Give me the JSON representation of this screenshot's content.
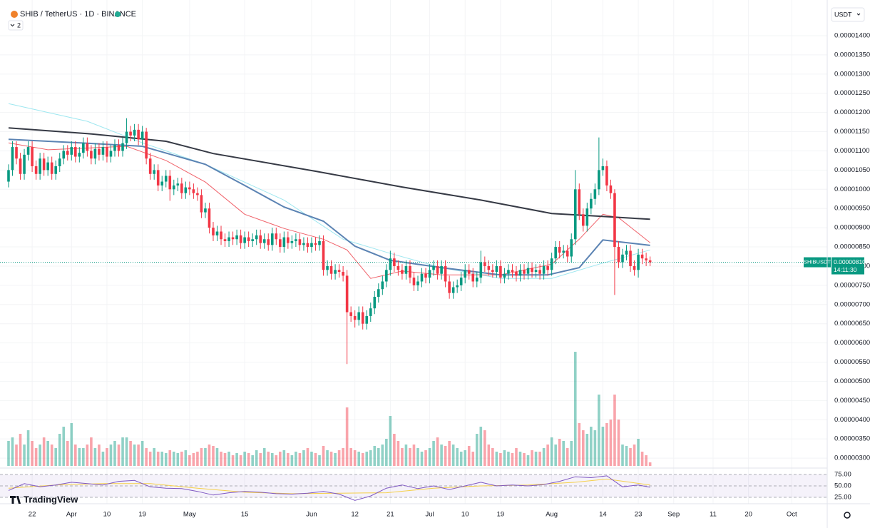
{
  "header": {
    "symbol": "SHIB / TetherUS · 1D · BINANCE",
    "indicator_count": "2",
    "currency": "USDT",
    "brand": "TradingView"
  },
  "chart_data": {
    "type": "candlestick",
    "up_color": "#089981",
    "down_color": "#f23645",
    "xlim": [
      -2.17,
      208
    ],
    "xticks": [
      {
        "value": 6,
        "label": "22"
      },
      {
        "value": 16,
        "label": "Apr"
      },
      {
        "value": 25,
        "label": "10"
      },
      {
        "value": 34,
        "label": "19"
      },
      {
        "value": 46,
        "label": "May"
      },
      {
        "value": 60,
        "label": "15"
      },
      {
        "value": 77,
        "label": "Jun"
      },
      {
        "value": 88,
        "label": "12"
      },
      {
        "value": 97,
        "label": "21"
      },
      {
        "value": 107,
        "label": "Jul"
      },
      {
        "value": 116,
        "label": "10"
      },
      {
        "value": 125,
        "label": "19"
      },
      {
        "value": 138,
        "label": "Aug"
      },
      {
        "value": 151,
        "label": "14"
      },
      {
        "value": 160,
        "label": "23"
      },
      {
        "value": 169,
        "label": "Sep"
      },
      {
        "value": 179,
        "label": "11"
      },
      {
        "value": 188,
        "label": "20"
      },
      {
        "value": 199,
        "label": "Oct"
      }
    ],
    "ylim": [
      2.76e-06,
      1.465e-05
    ],
    "yticks": [
      {
        "value": 3e-06,
        "label": "0.00000300"
      },
      {
        "value": 3.5e-06,
        "label": "0.00000350"
      },
      {
        "value": 4e-06,
        "label": "0.00000400"
      },
      {
        "value": 4.5e-06,
        "label": "0.00000450"
      },
      {
        "value": 5e-06,
        "label": "0.00000500"
      },
      {
        "value": 5.5e-06,
        "label": "0.00000550"
      },
      {
        "value": 6e-06,
        "label": "0.00000600"
      },
      {
        "value": 6.5e-06,
        "label": "0.00000650"
      },
      {
        "value": 7e-06,
        "label": "0.00000700"
      },
      {
        "value": 7.5e-06,
        "label": "0.00000750"
      },
      {
        "value": 8e-06,
        "label": "0.00000800"
      },
      {
        "value": 8.5e-06,
        "label": "0.00000850"
      },
      {
        "value": 9e-06,
        "label": "0.00000900"
      },
      {
        "value": 9.5e-06,
        "label": "0.00000950"
      },
      {
        "value": 1e-05,
        "label": "0.00001000"
      },
      {
        "value": 1.05e-05,
        "label": "0.00001050"
      },
      {
        "value": 1.1e-05,
        "label": "0.00001100"
      },
      {
        "value": 1.15e-05,
        "label": "0.00001150"
      },
      {
        "value": 1.2e-05,
        "label": "0.00001200"
      },
      {
        "value": 1.25e-05,
        "label": "0.00001250"
      },
      {
        "value": 1.3e-05,
        "label": "0.00001300"
      },
      {
        "value": 1.35e-05,
        "label": "0.00001350"
      },
      {
        "value": 1.4e-05,
        "label": "0.00001400"
      }
    ],
    "grid": true,
    "open": [
      1.02e-05,
      1.05e-05,
      1.11e-05,
      1.08e-05,
      1.04e-05,
      1.09e-05,
      1.11e-05,
      1.06e-05,
      1.04e-05,
      1.08e-05,
      1.05e-05,
      1.07e-05,
      1.04e-05,
      1.06e-05,
      1.08e-05,
      1.1e-05,
      1.09e-05,
      1.11e-05,
      1.085e-05,
      1.095e-05,
      1.12e-05,
      1.1e-05,
      1.08e-05,
      1.105e-05,
      1.09e-05,
      1.11e-05,
      1.085e-05,
      1.1e-05,
      1.115e-05,
      1.1e-05,
      1.12e-05,
      1.15e-05,
      1.14e-05,
      1.155e-05,
      1.13e-05,
      1.15e-05,
      1.08e-05,
      1.04e-05,
      1.05e-05,
      1.01e-05,
      1.02e-05,
      1.035e-05,
      1e-05,
      1.01e-05,
      1.015e-05,
      9.9e-06,
      1.005e-05,
      1e-05,
      9.9e-06,
      9.85e-06,
      9.4e-06,
      9.5e-06,
      9e-06,
      8.8e-06,
      8.9e-06,
      8.7e-06,
      8.65e-06,
      8.75e-06,
      8.7e-06,
      8.8e-06,
      8.6e-06,
      8.75e-06,
      8.65e-06,
      8.7e-06,
      8.8e-06,
      8.6e-06,
      8.7e-06,
      8.55e-06,
      8.85e-06,
      8.7e-06,
      8.5e-06,
      8.75e-06,
      8.6e-06,
      8.65e-06,
      8.7e-06,
      8.55e-06,
      8.6e-06,
      8.5e-06,
      8.6e-06,
      8.55e-06,
      8.65e-06,
      7.9e-06,
      8e-06,
      7.8e-06,
      7.9e-06,
      7.85e-06,
      7.75e-06,
      6.8e-06,
      6.7e-06,
      6.6e-06,
      6.8e-06,
      6.5e-06,
      6.7e-06,
      6.9e-06,
      7.2e-06,
      7.4e-06,
      7.6e-06,
      7.9e-06,
      8.2e-06,
      8e-06,
      7.9e-06,
      7.8e-06,
      8e-06,
      7.7e-06,
      7.5e-06,
      7.6e-06,
      7.8e-06,
      7.7e-06,
      7.9e-06,
      8e-06,
      7.8e-06,
      8e-06,
      7.6e-06,
      7.3e-06,
      7.45e-06,
      7.5e-06,
      7.7e-06,
      7.9e-06,
      7.8e-06,
      7.6e-06,
      7.7e-06,
      8.1e-06,
      8e-06,
      7.9e-06,
      7.85e-06,
      8e-06,
      7.7e-06,
      7.8e-06,
      7.9e-06,
      7.85e-06,
      7.75e-06,
      7.9e-06,
      7.8e-06,
      7.95e-06,
      7.85e-06,
      7.9e-06,
      7.8e-06,
      8e-06,
      7.9e-06,
      8.2e-06,
      8.5e-06,
      8.35e-06,
      8.4e-06,
      8.25e-06,
      8.7e-06,
      1e-05,
      9.35e-06,
      9.05e-06,
      9.5e-06,
      9.75e-06,
      1e-05,
      1.05e-05,
      1.06e-05,
      1.01e-05,
      9.9e-06,
      8.5e-06,
      8.1e-06,
      8.3e-06,
      8.4e-06,
      8e-06,
      7.9e-06,
      8.3e-06,
      8.2e-06,
      8.15e-06
    ],
    "high": [
      1.065e-05,
      1.125e-05,
      1.125e-05,
      1.095e-05,
      1.105e-05,
      1.125e-05,
      1.125e-05,
      1.075e-05,
      1.095e-05,
      1.095e-05,
      1.085e-05,
      1.085e-05,
      1.075e-05,
      1.095e-05,
      1.115e-05,
      1.115e-05,
      1.125e-05,
      1.125e-05,
      1.11e-05,
      1.135e-05,
      1.135e-05,
      1.115e-05,
      1.12e-05,
      1.12e-05,
      1.125e-05,
      1.125e-05,
      1.115e-05,
      1.13e-05,
      1.13e-05,
      1.135e-05,
      1.185e-05,
      1.165e-05,
      1.17e-05,
      1.17e-05,
      1.165e-05,
      1.16e-05,
      1.095e-05,
      1.065e-05,
      1.065e-05,
      1.035e-05,
      1.05e-05,
      1.05e-05,
      1.025e-05,
      1.03e-05,
      1.03e-05,
      1.02e-05,
      1.02e-05,
      1.015e-05,
      1.005e-05,
      1e-05,
      9.65e-06,
      9.65e-06,
      9.15e-06,
      9.05e-06,
      9.05e-06,
      8.85e-06,
      8.9e-06,
      8.9e-06,
      8.95e-06,
      8.95e-06,
      8.9e-06,
      8.9e-06,
      8.85e-06,
      8.95e-06,
      8.95e-06,
      8.85e-06,
      8.85e-06,
      9e-06,
      9e-06,
      8.85e-06,
      8.9e-06,
      8.9e-06,
      8.8e-06,
      8.85e-06,
      8.85e-06,
      8.75e-06,
      8.75e-06,
      8.75e-06,
      8.75e-06,
      8.8e-06,
      8.8e-06,
      8.15e-06,
      8.15e-06,
      8.05e-06,
      8.05e-06,
      8e-06,
      7.9e-06,
      6.95e-06,
      6.85e-06,
      6.95e-06,
      6.95e-06,
      6.85e-06,
      7.05e-06,
      7.35e-06,
      7.55e-06,
      7.75e-06,
      8.05e-06,
      8.4e-06,
      8.35e-06,
      8.15e-06,
      8.05e-06,
      8.15e-06,
      8.15e-06,
      7.85e-06,
      7.75e-06,
      7.95e-06,
      7.95e-06,
      8.05e-06,
      8.15e-06,
      8.15e-06,
      8.15e-06,
      8.15e-06,
      7.75e-06,
      7.6e-06,
      7.65e-06,
      7.85e-06,
      8.05e-06,
      8.05e-06,
      7.95e-06,
      7.85e-06,
      8.4e-06,
      8.25e-06,
      8.15e-06,
      8.05e-06,
      8.15e-06,
      8.15e-06,
      7.95e-06,
      8.05e-06,
      8.05e-06,
      8e-06,
      8.05e-06,
      8.05e-06,
      8.1e-06,
      8.1e-06,
      8.05e-06,
      8.05e-06,
      8.15e-06,
      8.15e-06,
      8.35e-06,
      8.65e-06,
      8.65e-06,
      8.55e-06,
      8.55e-06,
      8.85e-06,
      1.05e-05,
      1.015e-05,
      9.5e-06,
      9.65e-06,
      9.9e-06,
      1.015e-05,
      1.135e-05,
      1.08e-05,
      1.075e-05,
      1.025e-05,
      1e-05,
      8.65e-06,
      8.45e-06,
      8.55e-06,
      8.55e-06,
      8.15e-06,
      8.45e-06,
      8.45e-06,
      8.35e-06,
      8.25e-06
    ],
    "low": [
      1.005e-05,
      1.035e-05,
      1.065e-05,
      1.025e-05,
      1.025e-05,
      1.075e-05,
      1.045e-05,
      1.025e-05,
      1.025e-05,
      1.035e-05,
      1.035e-05,
      1.025e-05,
      1.025e-05,
      1.045e-05,
      1.065e-05,
      1.075e-05,
      1.075e-05,
      1.07e-05,
      1.07e-05,
      1.08e-05,
      1.085e-05,
      1.065e-05,
      1.065e-05,
      1.075e-05,
      1.075e-05,
      1.07e-05,
      1.07e-05,
      1.085e-05,
      1.085e-05,
      1.085e-05,
      1.105e-05,
      1.125e-05,
      1.125e-05,
      1.115e-05,
      1.115e-05,
      1.065e-05,
      1.025e-05,
      1.025e-05,
      9.95e-06,
      9.95e-06,
      1.005e-05,
      9.7e-06,
      9.85e-06,
      9.95e-06,
      9.75e-06,
      9.75e-06,
      9.85e-06,
      9.75e-06,
      9.7e-06,
      9.25e-06,
      9.25e-06,
      8.85e-06,
      8.65e-06,
      8.65e-06,
      8.55e-06,
      8.5e-06,
      8.5e-06,
      8.55e-06,
      8.55e-06,
      8.45e-06,
      8.45e-06,
      8.5e-06,
      8.5e-06,
      8.55e-06,
      8.45e-06,
      8.45e-06,
      8.4e-06,
      8.4e-06,
      8.55e-06,
      8.35e-06,
      8.35e-06,
      8.45e-06,
      8.45e-06,
      8.5e-06,
      8.4e-06,
      8.4e-06,
      8.35e-06,
      8.35e-06,
      8.4e-06,
      8.4e-06,
      7.75e-06,
      7.75e-06,
      7.65e-06,
      7.65e-06,
      7.7e-06,
      7.6e-06,
      5.45e-06,
      6.55e-06,
      6.4e-06,
      6.45e-06,
      6.35e-06,
      6.35e-06,
      6.55e-06,
      6.75e-06,
      7.05e-06,
      7.25e-06,
      7.45e-06,
      7.75e-06,
      7.85e-06,
      7.75e-06,
      7.65e-06,
      7.65e-06,
      7.55e-06,
      7.35e-06,
      7.35e-06,
      7.45e-06,
      7.55e-06,
      7.55e-06,
      7.75e-06,
      7.65e-06,
      7.65e-06,
      7.45e-06,
      7.15e-06,
      7.15e-06,
      7.3e-06,
      7.35e-06,
      7.55e-06,
      7.65e-06,
      7.45e-06,
      7.45e-06,
      7.55e-06,
      7.85e-06,
      7.75e-06,
      7.7e-06,
      7.7e-06,
      7.55e-06,
      7.55e-06,
      7.65e-06,
      7.7e-06,
      7.6e-06,
      7.6e-06,
      7.65e-06,
      7.65e-06,
      7.7e-06,
      7.7e-06,
      7.65e-06,
      7.65e-06,
      7.75e-06,
      7.75e-06,
      8.05e-06,
      8.2e-06,
      8.2e-06,
      8.1e-06,
      8.1e-06,
      8.55e-06,
      9.2e-06,
      8.9e-06,
      8.9e-06,
      9.35e-06,
      9.6e-06,
      9.85e-06,
      1.035e-05,
      9.95e-06,
      9.75e-06,
      7.25e-06,
      7.95e-06,
      7.95e-06,
      8.15e-06,
      7.85e-06,
      7.75e-06,
      7.7e-06,
      8.05e-06,
      8e-06,
      8e-06
    ],
    "close": [
      1.05e-05,
      1.11e-05,
      1.08e-05,
      1.04e-05,
      1.09e-05,
      1.11e-05,
      1.06e-05,
      1.04e-05,
      1.08e-05,
      1.05e-05,
      1.07e-05,
      1.04e-05,
      1.06e-05,
      1.08e-05,
      1.1e-05,
      1.09e-05,
      1.11e-05,
      1.085e-05,
      1.095e-05,
      1.12e-05,
      1.1e-05,
      1.08e-05,
      1.105e-05,
      1.09e-05,
      1.11e-05,
      1.085e-05,
      1.1e-05,
      1.115e-05,
      1.1e-05,
      1.12e-05,
      1.15e-05,
      1.14e-05,
      1.155e-05,
      1.13e-05,
      1.15e-05,
      1.08e-05,
      1.04e-05,
      1.05e-05,
      1.01e-05,
      1.02e-05,
      1.035e-05,
      1e-05,
      1.01e-05,
      1.015e-05,
      9.9e-06,
      1.005e-05,
      1e-05,
      9.9e-06,
      9.85e-06,
      9.4e-06,
      9.5e-06,
      9e-06,
      8.8e-06,
      8.9e-06,
      8.7e-06,
      8.65e-06,
      8.75e-06,
      8.7e-06,
      8.8e-06,
      8.6e-06,
      8.75e-06,
      8.65e-06,
      8.7e-06,
      8.8e-06,
      8.6e-06,
      8.7e-06,
      8.55e-06,
      8.85e-06,
      8.7e-06,
      8.5e-06,
      8.75e-06,
      8.6e-06,
      8.65e-06,
      8.7e-06,
      8.55e-06,
      8.6e-06,
      8.5e-06,
      8.6e-06,
      8.55e-06,
      8.65e-06,
      7.9e-06,
      8e-06,
      7.8e-06,
      7.9e-06,
      7.85e-06,
      7.75e-06,
      6.8e-06,
      6.7e-06,
      6.6e-06,
      6.8e-06,
      6.5e-06,
      6.7e-06,
      6.9e-06,
      7.2e-06,
      7.4e-06,
      7.6e-06,
      7.9e-06,
      8.2e-06,
      8e-06,
      7.9e-06,
      7.8e-06,
      8e-06,
      7.7e-06,
      7.5e-06,
      7.6e-06,
      7.8e-06,
      7.7e-06,
      7.9e-06,
      8e-06,
      7.8e-06,
      8e-06,
      7.6e-06,
      7.3e-06,
      7.45e-06,
      7.5e-06,
      7.7e-06,
      7.9e-06,
      7.8e-06,
      7.6e-06,
      7.7e-06,
      8.1e-06,
      8e-06,
      7.9e-06,
      7.85e-06,
      8e-06,
      7.7e-06,
      7.8e-06,
      7.9e-06,
      7.85e-06,
      7.75e-06,
      7.9e-06,
      7.8e-06,
      7.95e-06,
      7.85e-06,
      7.9e-06,
      7.8e-06,
      8e-06,
      7.9e-06,
      8.2e-06,
      8.5e-06,
      8.35e-06,
      8.4e-06,
      8.25e-06,
      8.7e-06,
      1e-05,
      9.35e-06,
      9.05e-06,
      9.5e-06,
      9.75e-06,
      1e-05,
      1.05e-05,
      1.06e-05,
      1.01e-05,
      9.9e-06,
      8.5e-06,
      8.1e-06,
      8.3e-06,
      8.4e-06,
      8e-06,
      7.9e-06,
      8.3e-06,
      8.2e-06,
      8.15e-06,
      8.1e-06
    ],
    "volume_ylim": [
      0,
      160
    ],
    "volume": [
      35,
      40,
      30,
      45,
      30,
      50,
      35,
      25,
      30,
      40,
      35,
      30,
      25,
      45,
      55,
      35,
      60,
      30,
      25,
      25,
      30,
      40,
      25,
      30,
      20,
      25,
      30,
      35,
      30,
      40,
      40,
      35,
      30,
      30,
      35,
      25,
      20,
      25,
      20,
      20,
      18,
      22,
      20,
      18,
      20,
      22,
      15,
      18,
      20,
      25,
      25,
      30,
      28,
      25,
      20,
      18,
      20,
      15,
      18,
      15,
      20,
      18,
      15,
      22,
      18,
      25,
      20,
      18,
      15,
      20,
      22,
      18,
      15,
      20,
      18,
      22,
      25,
      20,
      18,
      15,
      28,
      22,
      20,
      18,
      22,
      25,
      82,
      25,
      22,
      20,
      18,
      20,
      22,
      28,
      25,
      30,
      38,
      70,
      45,
      35,
      25,
      30,
      25,
      30,
      25,
      20,
      22,
      25,
      35,
      40,
      30,
      28,
      35,
      30,
      25,
      20,
      22,
      28,
      20,
      45,
      55,
      50,
      30,
      25,
      20,
      18,
      22,
      20,
      18,
      25,
      20,
      18,
      15,
      22,
      20,
      20,
      25,
      30,
      40,
      30,
      38,
      35,
      25,
      35,
      160,
      60,
      50,
      45,
      55,
      50,
      100,
      55,
      60,
      65,
      100,
      65,
      30,
      28,
      25,
      30,
      38,
      20,
      15,
      5
    ],
    "overlays": [
      {
        "color": "#9ee7f0",
        "x": [
          0,
          20,
          34,
          50,
          70,
          85,
          97,
          110,
          125,
          138,
          150,
          163
        ],
        "values": [
          1.223e-05,
          1.177e-05,
          1.121e-05,
          1.065e-05,
          9.72e-06,
          8.7e-06,
          8.33e-06,
          7.96e-06,
          7.68e-06,
          7.68e-06,
          8.05e-06,
          8.42e-06
        ]
      },
      {
        "color": "#f0626a",
        "x": [
          0,
          10,
          30,
          40,
          50,
          60,
          70,
          80,
          86,
          92,
          100,
          110,
          125,
          138,
          145,
          151,
          155,
          163
        ],
        "values": [
          1.121e-05,
          1.103e-05,
          1.112e-05,
          1.075e-05,
          1.019e-05,
          9.35e-06,
          8.98e-06,
          8.7e-06,
          8.42e-06,
          7.68e-06,
          7.87e-06,
          7.77e-06,
          7.77e-06,
          8.05e-06,
          8.7e-06,
          9.35e-06,
          9.26e-06,
          8.61e-06
        ]
      },
      {
        "color": "#5b83b3",
        "x": [
          0,
          20,
          34,
          50,
          60,
          70,
          80,
          88,
          97,
          110,
          125,
          137,
          145,
          151,
          163
        ],
        "values": [
          1.13e-05,
          1.12e-05,
          1.112e-05,
          1.065e-05,
          1.01e-05,
          9.54e-06,
          9.17e-06,
          8.52e-06,
          8.15e-06,
          7.96e-06,
          7.77e-06,
          7.77e-06,
          7.96e-06,
          8.68e-06,
          8.54e-06
        ]
      },
      {
        "color": "#363a45",
        "x": [
          0,
          20,
          40,
          52,
          78,
          100,
          120,
          138,
          150,
          163
        ],
        "values": [
          1.16e-05,
          1.145e-05,
          1.125e-05,
          1.093e-05,
          1.047e-05,
          1.006e-05,
          9.72e-06,
          9.37e-06,
          9.3e-06,
          9.22e-06
        ]
      }
    ],
    "last_price": {
      "symbol": "SHIBUSDT",
      "value": 8.1e-06,
      "label": "0.00000810",
      "countdown": "14:11:30"
    },
    "rsi": {
      "ylim": [
        14,
        86
      ],
      "yticks": [
        {
          "value": 75,
          "label": "75.00"
        },
        {
          "value": 50,
          "label": "50.00"
        },
        {
          "value": 25,
          "label": "25.00"
        }
      ],
      "line": {
        "color": "#7e57c2",
        "x": [
          0,
          4,
          8,
          12,
          16,
          20,
          24,
          28,
          32,
          36,
          40,
          44,
          48,
          52,
          56,
          60,
          64,
          68,
          72,
          76,
          80,
          84,
          88,
          92,
          96,
          100,
          104,
          108,
          112,
          116,
          120,
          124,
          128,
          132,
          136,
          140,
          144,
          148,
          152,
          156,
          160,
          163
        ],
        "values": [
          40,
          55,
          48,
          52,
          58,
          55,
          52,
          60,
          62,
          48,
          45,
          44,
          38,
          30,
          35,
          38,
          36,
          33,
          32,
          34,
          38,
          32,
          18,
          28,
          45,
          52,
          44,
          50,
          42,
          50,
          58,
          50,
          52,
          50,
          53,
          60,
          70,
          68,
          72,
          48,
          52,
          47
        ]
      },
      "ma": {
        "color": "#f5d04a",
        "x": [
          0,
          12,
          24,
          36,
          48,
          60,
          72,
          84,
          96,
          108,
          120,
          132,
          144,
          152,
          163
        ],
        "values": [
          45,
          52,
          55,
          55,
          45,
          36,
          33,
          34,
          35,
          45,
          50,
          52,
          58,
          65,
          52
        ]
      }
    }
  }
}
